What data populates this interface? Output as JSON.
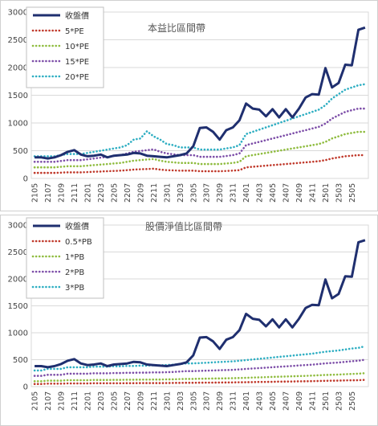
{
  "chart_data": [
    {
      "type": "line",
      "title": "本益比區間帶",
      "xlabel": "",
      "ylabel": "",
      "ylim": [
        0,
        3000
      ],
      "yticks": [
        0,
        500,
        1000,
        1500,
        2000,
        2500,
        3000
      ],
      "grid": "horizontal",
      "legend_position": "top-left",
      "x_tick_labels": [
        "2105",
        "2107",
        "2109",
        "2111",
        "2201",
        "2203",
        "2205",
        "2207",
        "2209",
        "2211",
        "2301",
        "2303",
        "2305",
        "2307",
        "2309",
        "2311",
        "2401",
        "2403",
        "2405",
        "2407",
        "2409",
        "2411",
        "2501",
        "2503",
        "2505"
      ],
      "series": [
        {
          "name": "收盤價",
          "color": "#1f2f6f",
          "style": "solid",
          "values": [
            380,
            380,
            360,
            380,
            420,
            480,
            510,
            430,
            400,
            410,
            430,
            380,
            410,
            420,
            430,
            460,
            450,
            410,
            400,
            390,
            380,
            400,
            420,
            450,
            580,
            910,
            920,
            840,
            700,
            870,
            920,
            1050,
            1350,
            1260,
            1240,
            1120,
            1250,
            1100,
            1250,
            1100,
            1260,
            1460,
            1520,
            1510,
            1990,
            1640,
            1720,
            2050,
            2040,
            2680,
            2720
          ]
        },
        {
          "name": "5*PE",
          "color": "#c0392b",
          "style": "dotted",
          "values": [
            100,
            100,
            100,
            100,
            105,
            110,
            110,
            110,
            115,
            120,
            125,
            130,
            135,
            140,
            150,
            160,
            165,
            170,
            175,
            160,
            150,
            145,
            140,
            140,
            140,
            130,
            130,
            130,
            130,
            135,
            140,
            150,
            200,
            210,
            220,
            230,
            240,
            250,
            260,
            270,
            280,
            290,
            300,
            310,
            330,
            360,
            380,
            400,
            410,
            420,
            420
          ]
        },
        {
          "name": "10*PE",
          "color": "#8fbc3f",
          "style": "dotted",
          "values": [
            200,
            200,
            200,
            200,
            210,
            220,
            220,
            220,
            230,
            240,
            250,
            260,
            270,
            280,
            300,
            320,
            330,
            340,
            350,
            320,
            300,
            290,
            280,
            280,
            280,
            260,
            260,
            260,
            260,
            270,
            280,
            300,
            400,
            420,
            440,
            460,
            480,
            500,
            520,
            540,
            560,
            580,
            600,
            620,
            660,
            720,
            760,
            800,
            820,
            840,
            840
          ]
        },
        {
          "name": "15*PE",
          "color": "#7d4ea8",
          "style": "dotted",
          "values": [
            300,
            300,
            300,
            300,
            315,
            330,
            330,
            330,
            345,
            360,
            375,
            390,
            405,
            420,
            450,
            480,
            495,
            510,
            525,
            480,
            450,
            435,
            420,
            420,
            420,
            390,
            390,
            390,
            390,
            405,
            420,
            450,
            600,
            630,
            660,
            690,
            720,
            750,
            780,
            810,
            840,
            870,
            900,
            930,
            990,
            1080,
            1140,
            1200,
            1230,
            1260,
            1260
          ]
        },
        {
          "name": "20*PE",
          "color": "#2eaec2",
          "style": "dotted",
          "values": [
            400,
            400,
            400,
            400,
            420,
            440,
            440,
            440,
            460,
            480,
            500,
            520,
            540,
            560,
            600,
            700,
            720,
            850,
            760,
            700,
            620,
            600,
            560,
            560,
            560,
            520,
            520,
            520,
            520,
            540,
            560,
            600,
            800,
            840,
            880,
            920,
            960,
            1000,
            1040,
            1080,
            1120,
            1160,
            1200,
            1240,
            1320,
            1440,
            1520,
            1600,
            1640,
            1680,
            1700
          ]
        }
      ]
    },
    {
      "type": "line",
      "title": "股價淨值比區間帶",
      "xlabel": "",
      "ylabel": "",
      "ylim": [
        0,
        3000
      ],
      "yticks": [
        0,
        500,
        1000,
        1500,
        2000,
        2500,
        3000
      ],
      "grid": "horizontal",
      "legend_position": "top-left",
      "x_tick_labels": [
        "2105",
        "2107",
        "2109",
        "2111",
        "2201",
        "2203",
        "2205",
        "2207",
        "2209",
        "2211",
        "2301",
        "2303",
        "2305",
        "2307",
        "2309",
        "2311",
        "2401",
        "2403",
        "2405",
        "2407",
        "2409",
        "2411",
        "2501",
        "2503",
        "2505"
      ],
      "series": [
        {
          "name": "收盤價",
          "color": "#1f2f6f",
          "style": "solid",
          "values": [
            380,
            380,
            360,
            380,
            420,
            480,
            510,
            430,
            400,
            410,
            430,
            380,
            410,
            420,
            430,
            460,
            450,
            410,
            400,
            390,
            380,
            400,
            420,
            450,
            580,
            910,
            920,
            840,
            700,
            870,
            920,
            1050,
            1350,
            1260,
            1240,
            1120,
            1250,
            1100,
            1250,
            1100,
            1260,
            1460,
            1520,
            1510,
            1990,
            1640,
            1720,
            2050,
            2040,
            2680,
            2720
          ]
        },
        {
          "name": "0.5*PB",
          "color": "#c0392b",
          "style": "dotted",
          "values": [
            50,
            50,
            55,
            55,
            55,
            60,
            60,
            60,
            60,
            62,
            62,
            62,
            63,
            63,
            64,
            64,
            65,
            65,
            66,
            66,
            67,
            68,
            70,
            72,
            72,
            73,
            74,
            75,
            76,
            77,
            78,
            80,
            82,
            84,
            86,
            88,
            90,
            92,
            94,
            96,
            98,
            100,
            102,
            105,
            108,
            110,
            112,
            115,
            118,
            120,
            125
          ]
        },
        {
          "name": "1*PB",
          "color": "#8fbc3f",
          "style": "dotted",
          "values": [
            100,
            100,
            110,
            110,
            110,
            120,
            120,
            120,
            120,
            124,
            124,
            124,
            126,
            126,
            128,
            128,
            130,
            130,
            132,
            132,
            134,
            136,
            140,
            144,
            144,
            146,
            148,
            150,
            152,
            154,
            156,
            160,
            164,
            168,
            172,
            176,
            180,
            184,
            188,
            192,
            196,
            200,
            204,
            210,
            216,
            220,
            224,
            230,
            236,
            240,
            250
          ]
        },
        {
          "name": "2*PB",
          "color": "#7d4ea8",
          "style": "dotted",
          "values": [
            200,
            200,
            220,
            220,
            220,
            240,
            240,
            240,
            240,
            248,
            248,
            248,
            252,
            252,
            256,
            256,
            260,
            260,
            264,
            264,
            268,
            272,
            280,
            288,
            288,
            292,
            296,
            300,
            304,
            308,
            312,
            320,
            328,
            336,
            344,
            352,
            360,
            368,
            376,
            384,
            392,
            400,
            408,
            420,
            432,
            440,
            448,
            460,
            472,
            480,
            500
          ]
        },
        {
          "name": "3*PB",
          "color": "#2eaec2",
          "style": "dotted",
          "values": [
            300,
            300,
            330,
            330,
            330,
            360,
            360,
            360,
            360,
            372,
            372,
            372,
            378,
            378,
            384,
            384,
            390,
            390,
            396,
            396,
            402,
            408,
            420,
            432,
            432,
            438,
            444,
            450,
            456,
            462,
            468,
            480,
            492,
            504,
            516,
            528,
            540,
            552,
            564,
            576,
            588,
            600,
            612,
            630,
            648,
            660,
            672,
            690,
            708,
            720,
            750
          ]
        }
      ]
    }
  ]
}
